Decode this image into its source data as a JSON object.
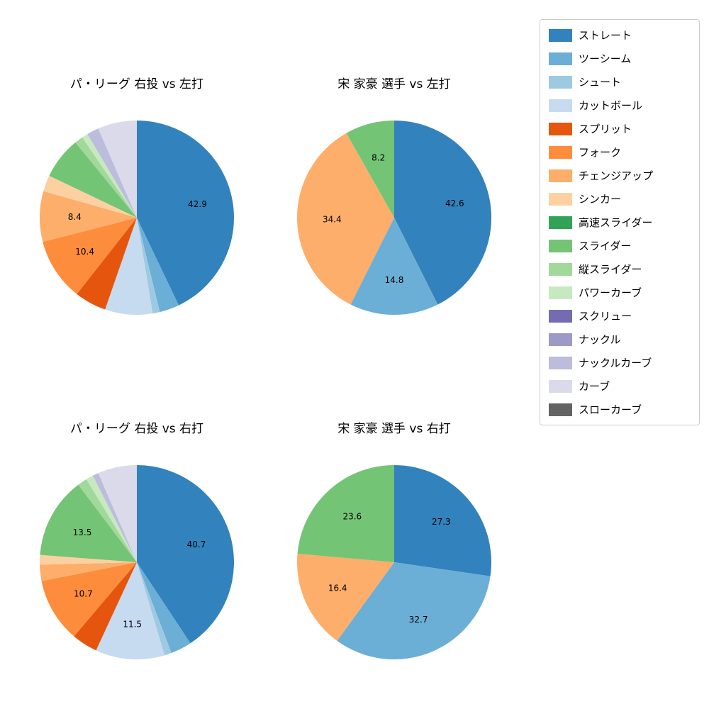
{
  "page": {
    "background": "#ffffff"
  },
  "chart_data": [
    {
      "type": "pie",
      "title": "パ・リーグ 右投 vs 左打",
      "start_angle": "top",
      "direction": "clockwise",
      "label_threshold": 8,
      "slices": [
        {
          "name": "ストレート",
          "value": 42.9,
          "color": "#3182bd"
        },
        {
          "name": "ツーシーム",
          "value": 3.3,
          "color": "#6baed6"
        },
        {
          "name": "シュート",
          "value": 1.2,
          "color": "#9ecae1"
        },
        {
          "name": "カットボール",
          "value": 7.9,
          "color": "#c6dbef"
        },
        {
          "name": "スプリット",
          "value": 5.3,
          "color": "#e6550d"
        },
        {
          "name": "フォーク",
          "value": 10.4,
          "color": "#fd8d3c"
        },
        {
          "name": "チェンジアップ",
          "value": 8.4,
          "color": "#fdae6b"
        },
        {
          "name": "シンカー",
          "value": 2.7,
          "color": "#fdd0a2"
        },
        {
          "name": "スライダー",
          "value": 7.0,
          "color": "#74c476"
        },
        {
          "name": "縦スライダー",
          "value": 1.4,
          "color": "#a1d99b"
        },
        {
          "name": "パワーカーブ",
          "value": 1.0,
          "color": "#c7e9c0"
        },
        {
          "name": "ナックルカーブ",
          "value": 2.0,
          "color": "#bcbddc"
        },
        {
          "name": "カーブ",
          "value": 6.5,
          "color": "#dadaeb"
        }
      ]
    },
    {
      "type": "pie",
      "title": "宋 家豪 選手 vs 左打",
      "start_angle": "top",
      "direction": "clockwise",
      "label_threshold": 8,
      "slices": [
        {
          "name": "ストレート",
          "value": 42.6,
          "color": "#3182bd"
        },
        {
          "name": "ツーシーム",
          "value": 14.8,
          "color": "#6baed6"
        },
        {
          "name": "チェンジアップ",
          "value": 34.4,
          "color": "#fdae6b"
        },
        {
          "name": "スライダー",
          "value": 8.2,
          "color": "#74c476"
        }
      ]
    },
    {
      "type": "pie",
      "title": "パ・リーグ 右投 vs 右打",
      "start_angle": "top",
      "direction": "clockwise",
      "label_threshold": 8,
      "slices": [
        {
          "name": "ストレート",
          "value": 40.7,
          "color": "#3182bd"
        },
        {
          "name": "ツーシーム",
          "value": 3.5,
          "color": "#6baed6"
        },
        {
          "name": "シュート",
          "value": 1.2,
          "color": "#9ecae1"
        },
        {
          "name": "カットボール",
          "value": 11.5,
          "color": "#c6dbef"
        },
        {
          "name": "スプリット",
          "value": 4.3,
          "color": "#e6550d"
        },
        {
          "name": "フォーク",
          "value": 10.7,
          "color": "#fd8d3c"
        },
        {
          "name": "チェンジアップ",
          "value": 2.7,
          "color": "#fdae6b"
        },
        {
          "name": "シンカー",
          "value": 1.6,
          "color": "#fdd0a2"
        },
        {
          "name": "スライダー",
          "value": 13.5,
          "color": "#74c476"
        },
        {
          "name": "縦スライダー",
          "value": 1.6,
          "color": "#a1d99b"
        },
        {
          "name": "パワーカーブ",
          "value": 1.2,
          "color": "#c7e9c0"
        },
        {
          "name": "ナックルカーブ",
          "value": 1.0,
          "color": "#bcbddc"
        },
        {
          "name": "カーブ",
          "value": 6.5,
          "color": "#dadaeb"
        }
      ]
    },
    {
      "type": "pie",
      "title": "宋 家豪 選手 vs 右打",
      "start_angle": "top",
      "direction": "clockwise",
      "label_threshold": 8,
      "slices": [
        {
          "name": "ストレート",
          "value": 27.3,
          "color": "#3182bd"
        },
        {
          "name": "ツーシーム",
          "value": 32.7,
          "color": "#6baed6"
        },
        {
          "name": "チェンジアップ",
          "value": 16.4,
          "color": "#fdae6b"
        },
        {
          "name": "スライダー",
          "value": 23.6,
          "color": "#74c476"
        }
      ]
    }
  ],
  "legend": {
    "position": "upper right",
    "entries": [
      {
        "label": "ストレート",
        "color": "#3182bd"
      },
      {
        "label": "ツーシーム",
        "color": "#6baed6"
      },
      {
        "label": "シュート",
        "color": "#9ecae1"
      },
      {
        "label": "カットボール",
        "color": "#c6dbef"
      },
      {
        "label": "スプリット",
        "color": "#e6550d"
      },
      {
        "label": "フォーク",
        "color": "#fd8d3c"
      },
      {
        "label": "チェンジアップ",
        "color": "#fdae6b"
      },
      {
        "label": "シンカー",
        "color": "#fdd0a2"
      },
      {
        "label": "高速スライダー",
        "color": "#31a354"
      },
      {
        "label": "スライダー",
        "color": "#74c476"
      },
      {
        "label": "縦スライダー",
        "color": "#a1d99b"
      },
      {
        "label": "パワーカーブ",
        "color": "#c7e9c0"
      },
      {
        "label": "スクリュー",
        "color": "#756bb1"
      },
      {
        "label": "ナックル",
        "color": "#9e9ac8"
      },
      {
        "label": "ナックルカーブ",
        "color": "#bcbddc"
      },
      {
        "label": "カーブ",
        "color": "#dadaeb"
      },
      {
        "label": "スローカーブ",
        "color": "#636363"
      }
    ]
  }
}
